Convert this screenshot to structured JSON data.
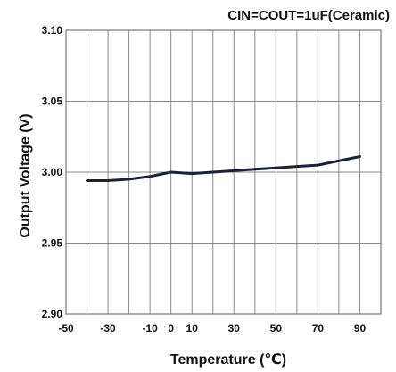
{
  "chart_data": {
    "type": "line",
    "title": "CIN=COUT=1uF(Ceramic)",
    "xlabel": "Temperature (℃)",
    "ylabel": "Output Voltage (V)",
    "xlim": [
      -50,
      100
    ],
    "ylim": [
      2.9,
      3.1
    ],
    "x_ticks": [
      -50,
      -30,
      -10,
      0,
      10,
      30,
      50,
      70,
      90
    ],
    "x_tick_labels": [
      "-50",
      "-30",
      "-10",
      "0",
      "10",
      "30",
      "50",
      "70",
      "90"
    ],
    "y_ticks": [
      2.9,
      2.95,
      3.0,
      3.05,
      3.1
    ],
    "y_tick_labels": [
      "2.90",
      "2.95",
      "3.00",
      "3.05",
      "3.10"
    ],
    "x_grid": [
      -50,
      -40,
      -30,
      -20,
      -10,
      0,
      10,
      20,
      30,
      40,
      50,
      60,
      70,
      80,
      90,
      100
    ],
    "grid": true,
    "legend": "none",
    "line_color": "#1a2233",
    "grid_color": "#8a8a8a",
    "series": [
      {
        "x": [
          -40,
          -30,
          -20,
          -10,
          0,
          10,
          20,
          30,
          40,
          50,
          60,
          70,
          80,
          90
        ],
        "values": [
          2.994,
          2.994,
          2.995,
          2.997,
          3.0,
          2.999,
          3.0,
          3.001,
          3.002,
          3.003,
          3.004,
          3.005,
          3.008,
          3.011
        ]
      }
    ]
  }
}
